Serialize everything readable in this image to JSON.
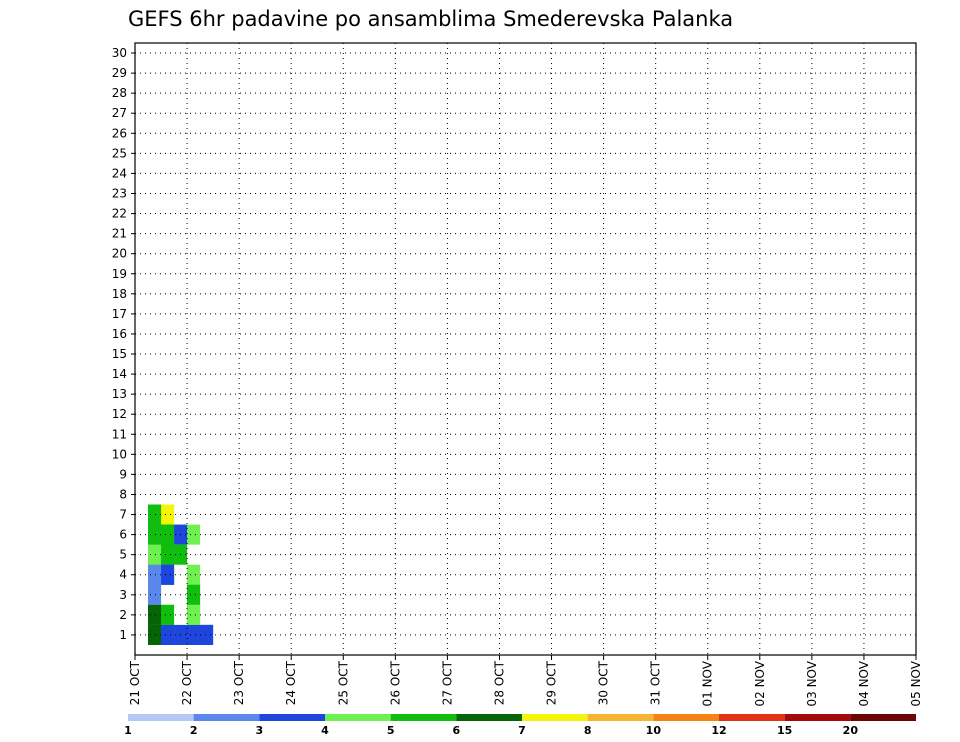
{
  "chart_data": {
    "type": "heatmap",
    "title": "GEFS 6hr padavine po ansamblima Smederevska Palanka",
    "xlabel": "",
    "ylabel": "",
    "x_ticks": [
      "21 OCT",
      "22 OCT",
      "23 OCT",
      "24 OCT",
      "25 OCT",
      "26 OCT",
      "27 OCT",
      "28 OCT",
      "29 OCT",
      "30 OCT",
      "31 OCT",
      "01 NOV",
      "02 NOV",
      "03 NOV",
      "04 NOV",
      "05 NOV"
    ],
    "y_ticks": [
      "1",
      "2",
      "3",
      "4",
      "5",
      "6",
      "7",
      "8",
      "9",
      "10",
      "11",
      "12",
      "13",
      "14",
      "15",
      "16",
      "17",
      "18",
      "19",
      "20",
      "21",
      "22",
      "23",
      "24",
      "25",
      "26",
      "27",
      "28",
      "29",
      "30"
    ],
    "x_unit": "6-hour step (4 steps per day), starting 21 OCT 00",
    "legend": {
      "labels": [
        "1",
        "2",
        "3",
        "4",
        "5",
        "6",
        "7",
        "8",
        "10",
        "12",
        "15",
        "20"
      ],
      "colors": [
        "#b4c8f5",
        "#5a87ec",
        "#1e46dc",
        "#6ef050",
        "#0fbe0f",
        "#056405",
        "#f5f50a",
        "#f5b432",
        "#f58214",
        "#e13214",
        "#a50a0a",
        "#6e0505"
      ]
    },
    "grid": true,
    "cells": [
      [
        1,
        1,
        2
      ],
      [
        1,
        5,
        3
      ],
      [
        2,
        5,
        2
      ],
      [
        1,
        5,
        3
      ],
      [
        2,
        4,
        3
      ],
      [
        1,
        4,
        3
      ],
      [
        2,
        1,
        1
      ],
      [
        2,
        4,
        2
      ],
      [
        2,
        1,
        2
      ],
      [
        1,
        5,
        4
      ],
      [
        2,
        4,
        4
      ],
      [
        2,
        6,
        5
      ],
      [
        2,
        7,
        4
      ],
      [
        1,
        6,
        4
      ],
      [
        1,
        7,
        5
      ],
      [
        2,
        4,
        6
      ],
      [
        1,
        5,
        4
      ],
      [
        1,
        7,
        5
      ],
      [
        1,
        1,
        3
      ],
      [
        1,
        4,
        4
      ],
      [
        1,
        4,
        3
      ],
      [
        1,
        4,
        2
      ],
      [
        2,
        1,
        2
      ],
      [
        1,
        5,
        4
      ],
      [
        1,
        3,
        2
      ],
      [
        2,
        5,
        4
      ],
      [
        4,
        1,
        2
      ],
      [
        2,
        5,
        4
      ],
      [
        2,
        4,
        4
      ],
      [
        4,
        1,
        2
      ],
      [
        4,
        6,
        3
      ],
      [
        2,
        6,
        4
      ],
      [
        2,
        4,
        1
      ],
      [
        1,
        2,
        2
      ],
      [
        1,
        2,
        3
      ],
      [
        4,
        1,
        2
      ],
      [
        3,
        6,
        2
      ],
      [
        2,
        1,
        2
      ],
      [
        1,
        4,
        4
      ],
      [
        1,
        7,
        5
      ],
      [
        1,
        3,
        3
      ],
      [
        2,
        2,
        4
      ],
      [
        4,
        2,
        4
      ],
      [
        2,
        2,
        4
      ],
      [
        2,
        7,
        6
      ],
      [
        1,
        3,
        1
      ],
      [
        1,
        7,
        3
      ],
      [
        2,
        6,
        4
      ],
      [
        4,
        4,
        3
      ],
      [
        2,
        4,
        2
      ],
      [
        3,
        1,
        2
      ],
      [
        5,
        1,
        2
      ],
      [
        4,
        3,
        1
      ],
      [
        1,
        4,
        1
      ],
      [
        1,
        2,
        5
      ],
      [
        4,
        3,
        4
      ],
      [
        4,
        2,
        3
      ],
      [
        1,
        1,
        5
      ],
      [
        1,
        7,
        4
      ],
      [
        1,
        7,
        4
      ],
      [
        1,
        5,
        3
      ],
      [
        5,
        1,
        2
      ],
      [
        3,
        5,
        4
      ]
    ],
    "cells_note": "each cell = [time step (0-based, 6hr), ensemble member, legend class index 0-11]"
  }
}
